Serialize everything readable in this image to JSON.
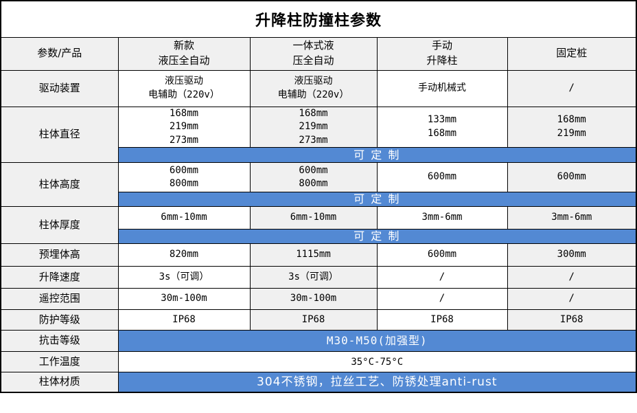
{
  "title": "升降柱防撞柱参数",
  "columns": [
    "参数/产品",
    "新款\n液压全自动",
    "一体式液\n压全自动",
    "手动\n升降柱",
    "固定桩"
  ],
  "rows": {
    "drive": {
      "label": "驱动装置",
      "values": [
        "液压驱动\n电辅助（220v）",
        "液压驱动\n电辅助（220v）",
        "手动机械式",
        "/"
      ]
    },
    "diameter": {
      "label": "柱体直径",
      "values": [
        "168mm\n219mm\n273mm",
        "168mm\n219mm\n273mm",
        "133mm\n168mm",
        "168mm\n219mm"
      ],
      "banner": "可 定 制"
    },
    "height": {
      "label": "柱体高度",
      "values": [
        "600mm\n800mm",
        "600mm\n800mm",
        "600mm",
        "600mm"
      ],
      "banner": "可 定 制"
    },
    "thickness": {
      "label": "柱体厚度",
      "values": [
        "6mm-10mm",
        "6mm-10mm",
        "3mm-6mm",
        "3mm-6mm"
      ],
      "banner": "可 定 制"
    },
    "embedded_height": {
      "label": "预埋体高",
      "values": [
        "820mm",
        "1115mm",
        "600mm",
        "300mm"
      ]
    },
    "lift_speed": {
      "label": "升降速度",
      "values": [
        "3s（可调）",
        "3s（可调）",
        "/",
        "/"
      ]
    },
    "remote_range": {
      "label": "遥控范围",
      "values": [
        "30m-100m",
        "30m-100m",
        "/",
        "/"
      ]
    },
    "protection_rating": {
      "label": "防护等级",
      "values": [
        "IP68",
        "IP68",
        "IP68",
        "IP68"
      ]
    },
    "impact_rating": {
      "label": "抗击等级",
      "merged": "M30-M50(加强型)"
    },
    "working_temperature": {
      "label": "工作温度",
      "merged": "35°C-75°C"
    },
    "material": {
      "label": "柱体材质",
      "merged": "304不锈钢，拉丝工艺、防锈处理anti-rust"
    }
  },
  "colors": {
    "banner_blue": "#5389d3",
    "label_gray": "#f0f0f0",
    "alt_column_gray": "#f0f0f0",
    "border_black": "#000000",
    "banner_text_white": "#ffffff"
  }
}
